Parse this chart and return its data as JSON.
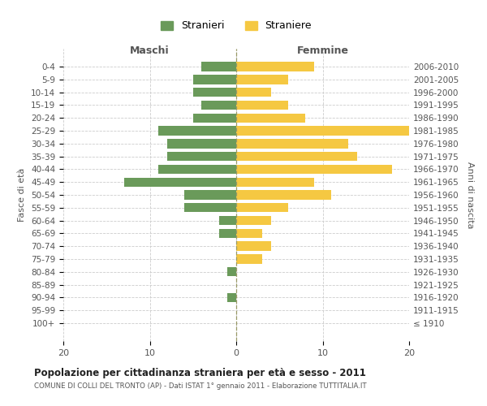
{
  "age_groups": [
    "0-4",
    "5-9",
    "10-14",
    "15-19",
    "20-24",
    "25-29",
    "30-34",
    "35-39",
    "40-44",
    "45-49",
    "50-54",
    "55-59",
    "60-64",
    "65-69",
    "70-74",
    "75-79",
    "80-84",
    "85-89",
    "90-94",
    "95-99",
    "100+"
  ],
  "birth_years": [
    "2006-2010",
    "2001-2005",
    "1996-2000",
    "1991-1995",
    "1986-1990",
    "1981-1985",
    "1976-1980",
    "1971-1975",
    "1966-1970",
    "1961-1965",
    "1956-1960",
    "1951-1955",
    "1946-1950",
    "1941-1945",
    "1936-1940",
    "1931-1935",
    "1926-1930",
    "1921-1925",
    "1916-1920",
    "1911-1915",
    "≤ 1910"
  ],
  "maschi": [
    4,
    5,
    5,
    4,
    5,
    9,
    8,
    8,
    9,
    13,
    6,
    6,
    2,
    2,
    0,
    0,
    1,
    0,
    1,
    0,
    0
  ],
  "femmine": [
    9,
    6,
    4,
    6,
    8,
    20,
    13,
    14,
    18,
    9,
    11,
    6,
    4,
    3,
    4,
    3,
    0,
    0,
    0,
    0,
    0
  ],
  "maschi_color": "#6a9a5a",
  "femmine_color": "#f5c842",
  "background_color": "#ffffff",
  "grid_color": "#cccccc",
  "title": "Popolazione per cittadinanza straniera per età e sesso - 2011",
  "subtitle": "COMUNE DI COLLI DEL TRONTO (AP) - Dati ISTAT 1° gennaio 2011 - Elaborazione TUTTITALIA.IT",
  "xlabel_left": "Maschi",
  "xlabel_right": "Femmine",
  "ylabel_left": "Fasce di età",
  "ylabel_right": "Anni di nascita",
  "legend_maschi": "Stranieri",
  "legend_femmine": "Straniere",
  "xlim": 20,
  "bar_height": 0.72
}
